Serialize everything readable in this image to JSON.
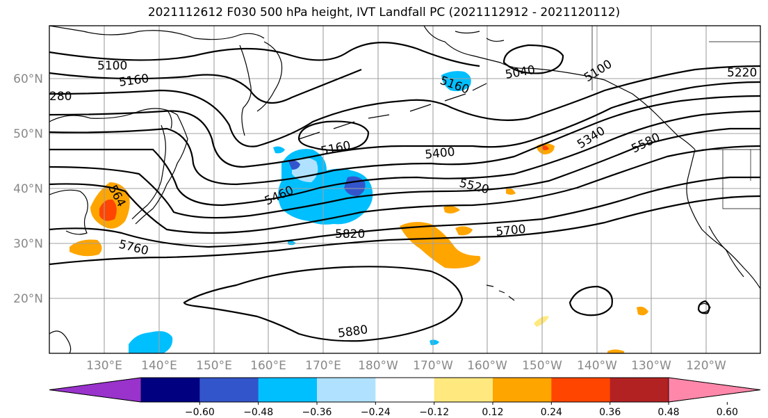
{
  "title": "2021112612 F030 500 hPa height, IVT Landfall PC (2021112912 - 2021120112)",
  "latitude_labels": [
    "60°N",
    "50°N",
    "40°N",
    "30°N",
    "20°N"
  ],
  "longitude_labels": [
    "130°E",
    "140°E",
    "150°E",
    "160°E",
    "170°E",
    "180°W",
    "170°W",
    "160°W",
    "150°W",
    "140°W",
    "130°W",
    "120°W"
  ],
  "contour_labels": [
    "5100",
    "5160",
    "280",
    "5160",
    "5040",
    "5100",
    "5220",
    "5160",
    "5400",
    "5340",
    "5580",
    "5460",
    "5520",
    "564",
    "5820",
    "5700",
    "5760",
    "5880"
  ],
  "colorbar": {
    "ticks": [
      "−0.60",
      "−0.48",
      "−0.36",
      "−0.24",
      "−0.12",
      "0.12",
      "0.24",
      "0.36",
      "0.48",
      "0.60"
    ],
    "colors": [
      "#9933cc",
      "#000080",
      "#3355cc",
      "#00bfff",
      "#b0e2ff",
      "#ffffff",
      "#ffe97f",
      "#ffa500",
      "#ff4500",
      "#b22222",
      "#ff88aa"
    ]
  },
  "colors": {
    "blue_shade": "#00bfff",
    "light_blue_shade": "#b0e2ff",
    "dark_blue_shade": "#3355cc",
    "orange_shade": "#ffa500",
    "red_shade": "#ff4500",
    "yellow_shade": "#ffe97f"
  }
}
